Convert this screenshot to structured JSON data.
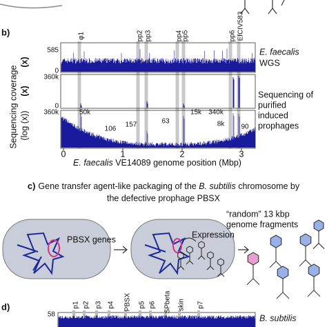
{
  "panel_b": {
    "label": "b)",
    "y_axis_label": "Sequencing coverage",
    "y_axis_sub": "(log (x))",
    "track_units": [
      "(x)",
      "(x)"
    ],
    "track_ticks": [
      "585",
      "0",
      "360k",
      "0",
      "360k"
    ],
    "track1_legend": {
      "species": "E. faecalis",
      "text": "WGS"
    },
    "track2_legend": [
      "Sequencing of",
      "purified",
      "induced",
      "prophages"
    ],
    "prophages": [
      "φ1",
      "pp2",
      "pp3",
      "pp4",
      "pp5",
      "pp6",
      "EfCIV583"
    ],
    "annotations": [
      "50k",
      "106",
      "157",
      "63",
      "15k",
      "340k",
      "8k",
      "90"
    ],
    "x_ticks": [
      0,
      1,
      2,
      3
    ],
    "x_label": {
      "species": "E. faecalis",
      "text": " VE14089 genome position (Mbp)"
    }
  },
  "panel_c": {
    "label": "c)",
    "title_1a": "Gene transfer agent-like packaging of the ",
    "title_1b": "B. subtilis",
    "title_1c": " chromosome by",
    "title_2": "the defective prophage PBSX",
    "genes": "PBSX genes",
    "expression": "Expression",
    "fragments_1": "“random” 13 kbp",
    "fragments_2": "genome fragments"
  },
  "panel_d": {
    "label": "d)",
    "tick": "58",
    "prophages": [
      "p1",
      "p2",
      "p3",
      "p4",
      "PBSX",
      "p5",
      "p6",
      "SPbeta",
      "skin",
      "p7"
    ],
    "species": "B. subtilis"
  }
}
